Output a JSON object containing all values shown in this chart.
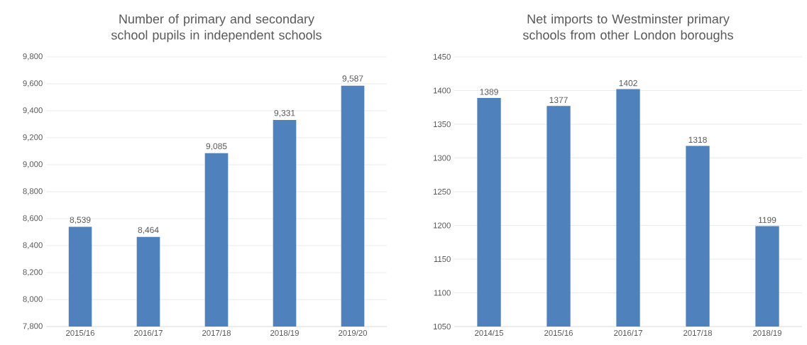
{
  "chart_data": [
    {
      "type": "bar",
      "title": "Number of primary and secondary school pupils in independent schools",
      "categories": [
        "2015/16",
        "2016/17",
        "2017/18",
        "2018/19",
        "2019/20"
      ],
      "values": [
        8539,
        8464,
        9085,
        9331,
        9587
      ],
      "value_labels": [
        "8,539",
        "8,464",
        "9,085",
        "9,331",
        "9,587"
      ],
      "color": "#4f81bd",
      "ylim": [
        7800,
        9800
      ],
      "yticks": [
        {
          "value": 7800,
          "label": "7,800"
        },
        {
          "value": 8000,
          "label": "8,000"
        },
        {
          "value": 8200,
          "label": "8,200"
        },
        {
          "value": 8400,
          "label": "8,400"
        },
        {
          "value": 8600,
          "label": "8,600"
        },
        {
          "value": 8800,
          "label": "8,800"
        },
        {
          "value": 9000,
          "label": "9,000"
        },
        {
          "value": 9200,
          "label": "9,200"
        },
        {
          "value": 9400,
          "label": "9,400"
        },
        {
          "value": 9600,
          "label": "9,600"
        },
        {
          "value": 9800,
          "label": "9,800"
        }
      ],
      "grid": "y"
    },
    {
      "type": "bar",
      "title": "Net imports to Westminster primary schools from other London boroughs",
      "categories": [
        "2014/15",
        "2015/16",
        "2016/17",
        "2017/18",
        "2018/19"
      ],
      "values": [
        1389,
        1377,
        1402,
        1318,
        1199
      ],
      "data_labels": true,
      "color": "#4f81bd",
      "ylim": [
        1050,
        1450
      ],
      "yticks": [
        1050,
        1100,
        1150,
        1200,
        1250,
        1300,
        1350,
        1400,
        1450
      ],
      "grid": "y"
    }
  ]
}
